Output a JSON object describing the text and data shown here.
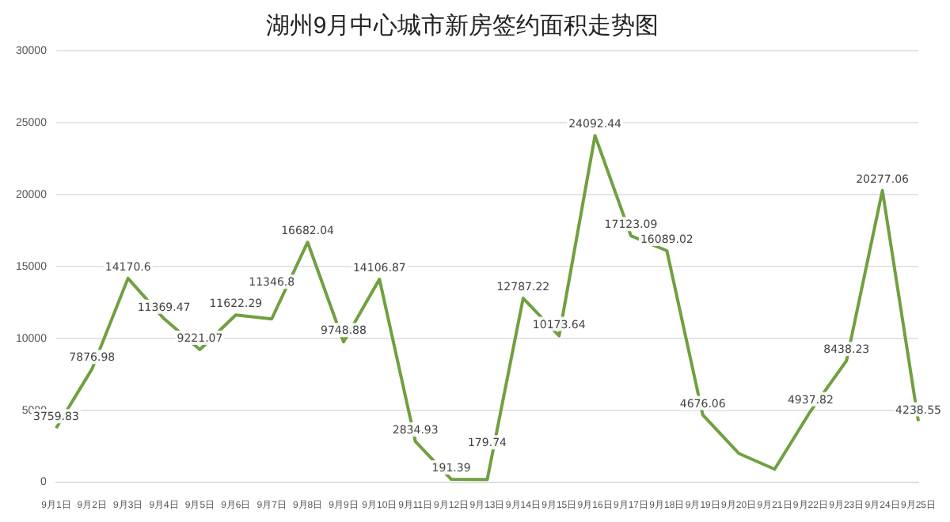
{
  "chart_data": {
    "type": "line",
    "title": "湖州9月中心城市新房签约面积走势图",
    "categories": [
      "9月1日",
      "9月2日",
      "9月3日",
      "9月4日",
      "9月5日",
      "9月6日",
      "9月7日",
      "9月8日",
      "9月9日",
      "9月10日",
      "9月11日",
      "9月12日",
      "9月13日",
      "9月14日",
      "9月15日",
      "9月16日",
      "9月17日",
      "9月18日",
      "9月19日",
      "9月20日",
      "9月21日",
      "9月22日",
      "9月23日",
      "9月24日",
      "9月25日"
    ],
    "series": [
      {
        "color": "#70a040",
        "values": [
          3759.83,
          7876.98,
          14170.6,
          11369.47,
          9221.07,
          11622.29,
          11346.8,
          16682.04,
          9748.88,
          14106.87,
          2834.93,
          191.39,
          179.74,
          12787.22,
          10173.64,
          24092.44,
          17123.09,
          16089.02,
          4676.06,
          2000,
          900,
          4937.82,
          8438.23,
          20277.06,
          4238.55
        ],
        "value_labels": [
          "3759.83",
          "7876.98",
          "14170.6",
          "11369.47",
          "9221.07",
          "11622.29",
          "11346.8",
          "16682.04",
          "9748.88",
          "14106.87",
          "2834.93",
          "191.39",
          "179.74",
          "12787.22",
          "10173.64",
          "24092.44",
          "17123.09",
          "16089.02",
          "4676.06",
          null,
          null,
          "4937.82",
          "8438.23",
          "20277.06",
          "4238.55"
        ]
      }
    ],
    "ylim": [
      0,
      30000
    ],
    "yticks": [
      0,
      5000,
      10000,
      15000,
      20000,
      25000,
      30000
    ],
    "grid": "y",
    "marker": "none",
    "line_style": "solid"
  }
}
